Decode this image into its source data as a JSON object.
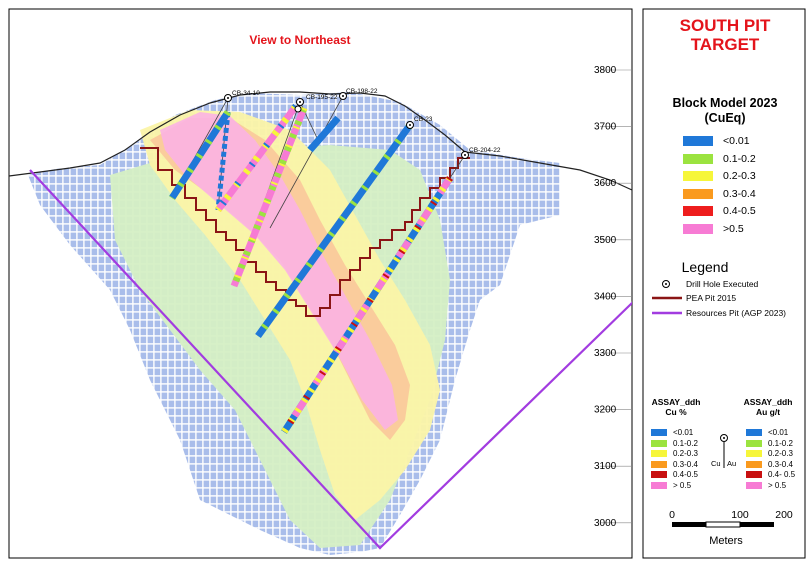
{
  "view_label": "View to Northeast",
  "target_title": [
    "SOUTH PIT",
    "TARGET"
  ],
  "elevation_ticks": [
    "3800",
    "3700",
    "3600",
    "3500",
    "3400",
    "3300",
    "3200",
    "3100",
    "3000"
  ],
  "drill_holes": [
    "CB-34-10",
    "CB-195-22",
    "CB-198-22",
    "CB-23",
    "CB-204-22"
  ],
  "block_model": {
    "title": [
      "Block Model 2023",
      "(CuEq)"
    ],
    "items": [
      {
        "label": "<0.01",
        "color": "#1f78d8"
      },
      {
        "label": "0.1-0.2",
        "color": "#9be33f"
      },
      {
        "label": "0.2-0.3",
        "color": "#f6f63a"
      },
      {
        "label": "0.3-0.4",
        "color": "#fa9a1e"
      },
      {
        "label": "0.4-0.5",
        "color": "#ee1d1d"
      },
      {
        "label": ">0.5",
        "color": "#f77bd4"
      }
    ]
  },
  "legend": {
    "title": "Legend",
    "drill_hole": "Drill Hole Executed",
    "pea_pit": "PEA Pit 2015",
    "resources_pit": "Resources Pit (AGP 2023)",
    "pea_color": "#8b1515",
    "resources_color": "#a23ce0"
  },
  "assay_cu": {
    "title": [
      "ASSAY_ddh",
      "Cu %"
    ],
    "items": [
      {
        "label": "<0.01",
        "color": "#1f78d8"
      },
      {
        "label": "0.1-0.2",
        "color": "#9be33f"
      },
      {
        "label": "0.2-0.3",
        "color": "#f6f63a"
      },
      {
        "label": "0.3-0.4",
        "color": "#fa9a1e"
      },
      {
        "label": "0.4-0.5",
        "color": "#c81010"
      },
      {
        "label": "> 0.5",
        "color": "#f77bd4"
      }
    ]
  },
  "assay_au": {
    "title": [
      "ASSAY_ddh",
      "Au g/t"
    ],
    "items": [
      {
        "label": "<0.01",
        "color": "#1f78d8"
      },
      {
        "label": "0.1-0.2",
        "color": "#9be33f"
      },
      {
        "label": "0.2-0.3",
        "color": "#f6f63a"
      },
      {
        "label": "0.3-0.4",
        "color": "#fa9a1e"
      },
      {
        "label": "0.4- 0.5",
        "color": "#c81010"
      },
      {
        "label": "> 0.5",
        "color": "#f77bd4"
      }
    ]
  },
  "trace_labels": {
    "cu": "Cu",
    "au": "Au"
  },
  "scale_bar": {
    "ticks": [
      "0",
      "100",
      "200"
    ],
    "unit": "Meters"
  }
}
